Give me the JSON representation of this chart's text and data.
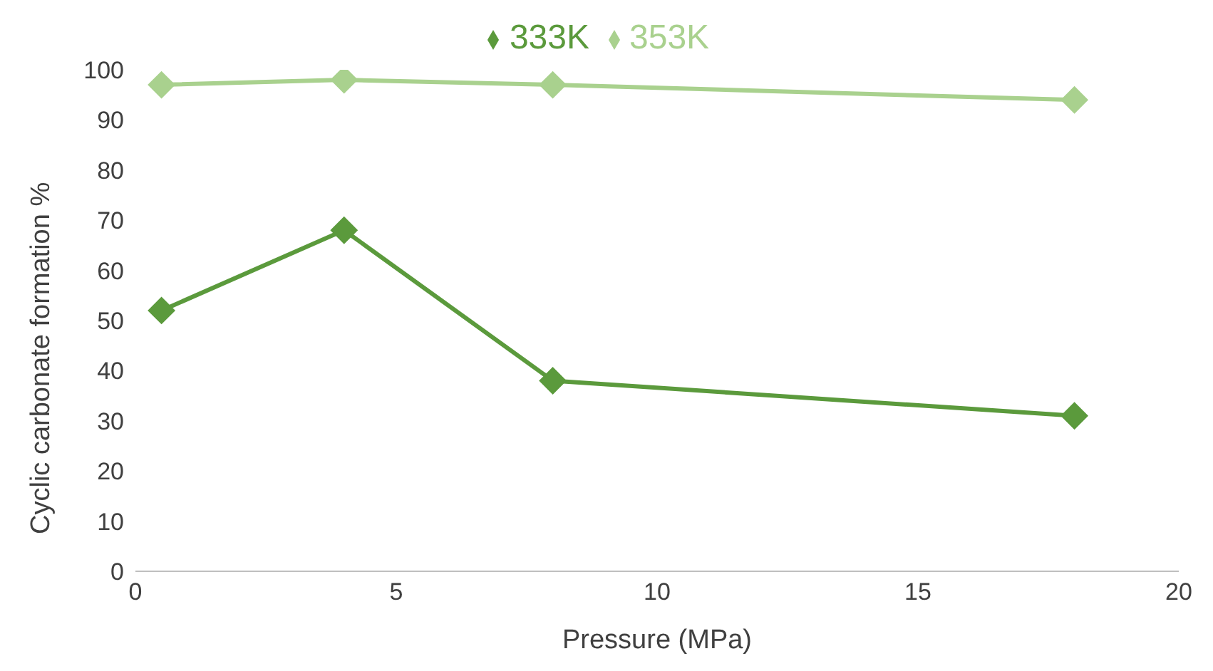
{
  "chart_data": {
    "type": "line",
    "xlabel": "Pressure (MPa)",
    "ylabel": "Cyclic carbonate formation %",
    "x": [
      0.5,
      4,
      8,
      18
    ],
    "series": [
      {
        "name": "353K",
        "color": "#a9d18e",
        "values": [
          97,
          98,
          97,
          94
        ]
      },
      {
        "name": "333K",
        "color": "#5b9a3c",
        "values": [
          52,
          68,
          38,
          31
        ]
      }
    ],
    "xlim": [
      0,
      20
    ],
    "xticks": [
      0,
      5,
      10,
      15,
      20
    ],
    "ylim": [
      0,
      100
    ],
    "yticks": [
      0,
      10,
      20,
      30,
      40,
      50,
      60,
      70,
      80,
      90,
      100
    ],
    "grid": false,
    "legend": "top",
    "marker": "diamond",
    "line_style": "solid"
  }
}
